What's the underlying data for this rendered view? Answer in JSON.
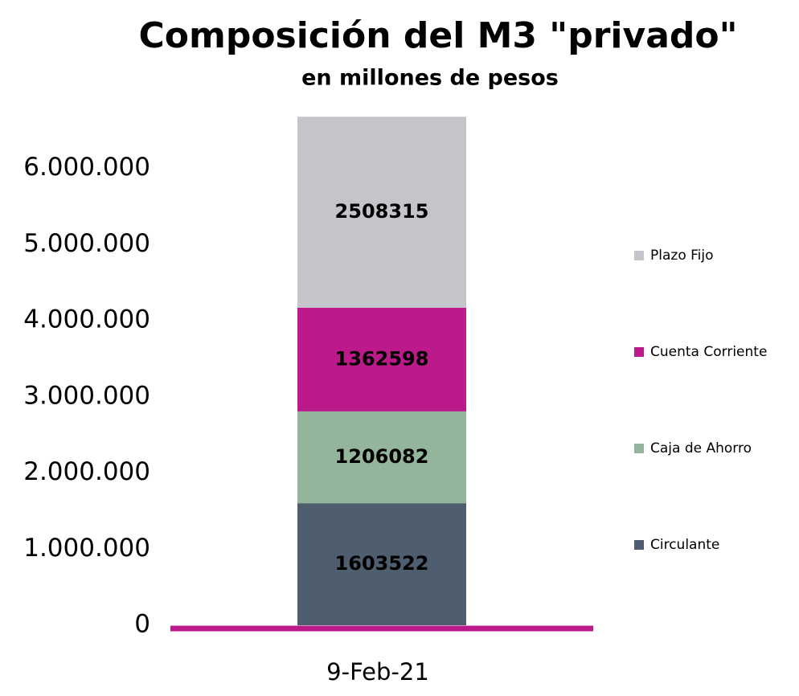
{
  "chart_data": {
    "type": "stacked_bar",
    "title": "Composición del M3 \"privado\"",
    "subtitle": "en millones de pesos",
    "categories": [
      "9-Feb-21"
    ],
    "series": [
      {
        "name": "Circulante",
        "color": "#4f5e6e",
        "values": [
          1603522
        ]
      },
      {
        "name": "Caja de Ahorro",
        "color": "#93b59b",
        "values": [
          1206082
        ]
      },
      {
        "name": "Cuenta Corriente",
        "color": "#bc1a8a",
        "values": [
          1362598
        ]
      },
      {
        "name": "Plazo Fijo",
        "color": "#c5c4ca",
        "values": [
          2508315
        ]
      }
    ],
    "ylim": [
      0,
      7000000
    ],
    "yticks": [
      0,
      {
        "value": 1000000,
        "label": "1.000.000"
      },
      {
        "value": 2000000,
        "label": "2.000.000"
      },
      {
        "value": 3000000,
        "label": "3.000.000"
      },
      {
        "value": 4000000,
        "label": "4.000.000"
      },
      {
        "value": 5000000,
        "label": "5.000.000"
      },
      {
        "value": 6000000,
        "label": "6.000.000"
      }
    ],
    "axis_color": "#bc1a8a",
    "legend": "right"
  }
}
